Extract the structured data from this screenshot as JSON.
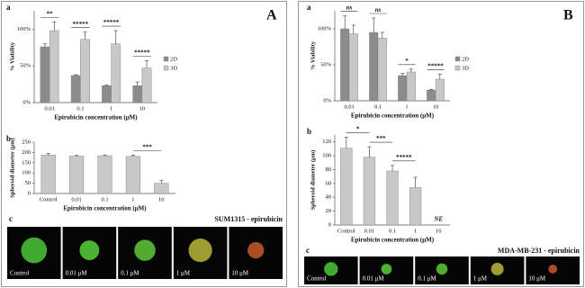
{
  "panels": [
    {
      "letter": "A",
      "image_strip": {
        "panel_label": "c",
        "title": "SUM1315 - epirubicin",
        "labels": [
          "Control",
          "0.01 μM",
          "0.1 μM",
          "1 μM",
          "10 μM"
        ]
      }
    },
    {
      "letter": "B",
      "image_strip": {
        "panel_label": "c",
        "title": "MDA-MB-231 - epirubicin",
        "labels": [
          "Control",
          "0.01 μM",
          "0.1 μM",
          "1 μM",
          "10 μM"
        ]
      }
    }
  ],
  "chart_data": [
    {
      "type": "bar",
      "panel_label": "a",
      "y_label": "% Viability",
      "x_label": "Epirubicin concentration (μM)",
      "categories": [
        "0.01",
        "0.1",
        "1",
        "10"
      ],
      "series": [
        {
          "name": "2D",
          "color": "#8c8c8c",
          "values": [
            76,
            37,
            23,
            23
          ],
          "errors": [
            4,
            1,
            1,
            5
          ]
        },
        {
          "name": "3D",
          "color": "#c8c8c8",
          "values": [
            98,
            86,
            80,
            47
          ],
          "errors": [
            12,
            10,
            18,
            10
          ]
        }
      ],
      "ylim": [
        0,
        125
      ],
      "yticks": [
        {
          "value": 0,
          "label": "0%"
        },
        {
          "value": 50,
          "label": "50%"
        },
        {
          "value": 100,
          "label": "100%"
        }
      ],
      "significance": [
        {
          "label": "**",
          "categories": [
            "0.01"
          ]
        },
        {
          "label": "*****",
          "categories": [
            "0.1"
          ]
        },
        {
          "label": "*****",
          "categories": [
            "1"
          ]
        },
        {
          "label": "*****",
          "categories": [
            "10"
          ]
        }
      ]
    },
    {
      "type": "bar",
      "panel_label": "b",
      "y_label": "Spheroid diameter (μm)",
      "x_label": "Epirubicin concentration (μM)",
      "categories": [
        "Control",
        "0.01",
        "0.1",
        "1",
        "10"
      ],
      "color": "#c8c8c8",
      "values": [
        188,
        182,
        184,
        181,
        50
      ],
      "errors": [
        8,
        4,
        4,
        6,
        15
      ],
      "ylim": [
        0,
        250
      ],
      "yticks": [
        0,
        50,
        100,
        150,
        200,
        250
      ],
      "significance": [
        {
          "label": "***",
          "categories": [
            "1",
            "10"
          ]
        }
      ]
    },
    {
      "type": "bar",
      "panel_label": "a",
      "y_label": "% Viability",
      "x_label": "Epirubicin concentration (μM)",
      "categories": [
        "0.01",
        "0.1",
        "1",
        "10"
      ],
      "series": [
        {
          "name": "2D",
          "color": "#8c8c8c",
          "values": [
            100,
            95,
            35,
            15
          ],
          "errors": [
            18,
            20,
            3,
            1
          ]
        },
        {
          "name": "3D",
          "color": "#c8c8c8",
          "values": [
            93,
            87,
            40,
            30
          ],
          "errors": [
            12,
            8,
            4,
            7
          ]
        }
      ],
      "ylim": [
        0,
        125
      ],
      "yticks": [
        {
          "value": 0,
          "label": "0%"
        },
        {
          "value": 50,
          "label": "50%"
        },
        {
          "value": 100,
          "label": "100%"
        }
      ],
      "significance": [
        {
          "label": "ns",
          "categories": [
            "0.01"
          ]
        },
        {
          "label": "ns",
          "categories": [
            "0.1"
          ]
        },
        {
          "label": "*",
          "categories": [
            "1"
          ]
        },
        {
          "label": "*****",
          "categories": [
            "10"
          ]
        }
      ]
    },
    {
      "type": "bar",
      "panel_label": "b",
      "y_label": "Spheroid diameter (μm)",
      "x_label": "Epirubicin concentration (μM)",
      "categories": [
        "Control",
        "0.01",
        "0.1",
        "1",
        "10"
      ],
      "color": "#c8c8c8",
      "values": [
        111,
        98,
        78,
        54,
        null
      ],
      "errors": [
        16,
        15,
        8,
        15,
        null
      ],
      "value_labels": [
        null,
        null,
        null,
        null,
        "NE"
      ],
      "ylim": [
        0,
        130
      ],
      "yticks": [
        0,
        20,
        40,
        60,
        80,
        100,
        120
      ],
      "significance": [
        {
          "label": "*",
          "categories": [
            "Control",
            "0.01"
          ]
        },
        {
          "label": "***",
          "categories": [
            "0.01",
            "0.1"
          ]
        },
        {
          "label": "*****",
          "categories": [
            "0.1",
            "1"
          ]
        }
      ]
    }
  ]
}
